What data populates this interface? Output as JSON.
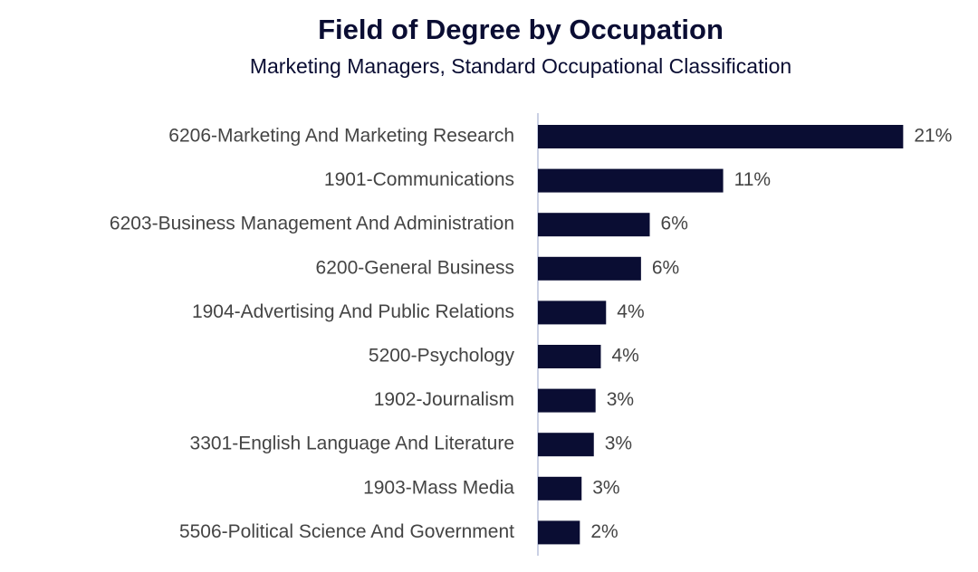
{
  "chart_data": {
    "type": "barh",
    "title": "Field of Degree by Occupation",
    "subtitle": "Marketing Managers, Standard Occupational Classification",
    "categories": [
      "6206-Marketing And Marketing Research",
      "1901-Communications",
      "6203-Business Management And Administration",
      "6200-General Business",
      "1904-Advertising And Public Relations",
      "5200-Psychology",
      "1902-Journalism",
      "3301-English Language And Literature",
      "1903-Mass Media",
      "5506-Political Science And Government"
    ],
    "values": [
      20.9,
      10.6,
      6.4,
      5.9,
      3.9,
      3.6,
      3.3,
      3.2,
      2.5,
      2.4
    ],
    "value_labels": [
      "21%",
      "11%",
      "6%",
      "6%",
      "4%",
      "4%",
      "3%",
      "3%",
      "3%",
      "2%"
    ],
    "color": "#0a0d33"
  }
}
